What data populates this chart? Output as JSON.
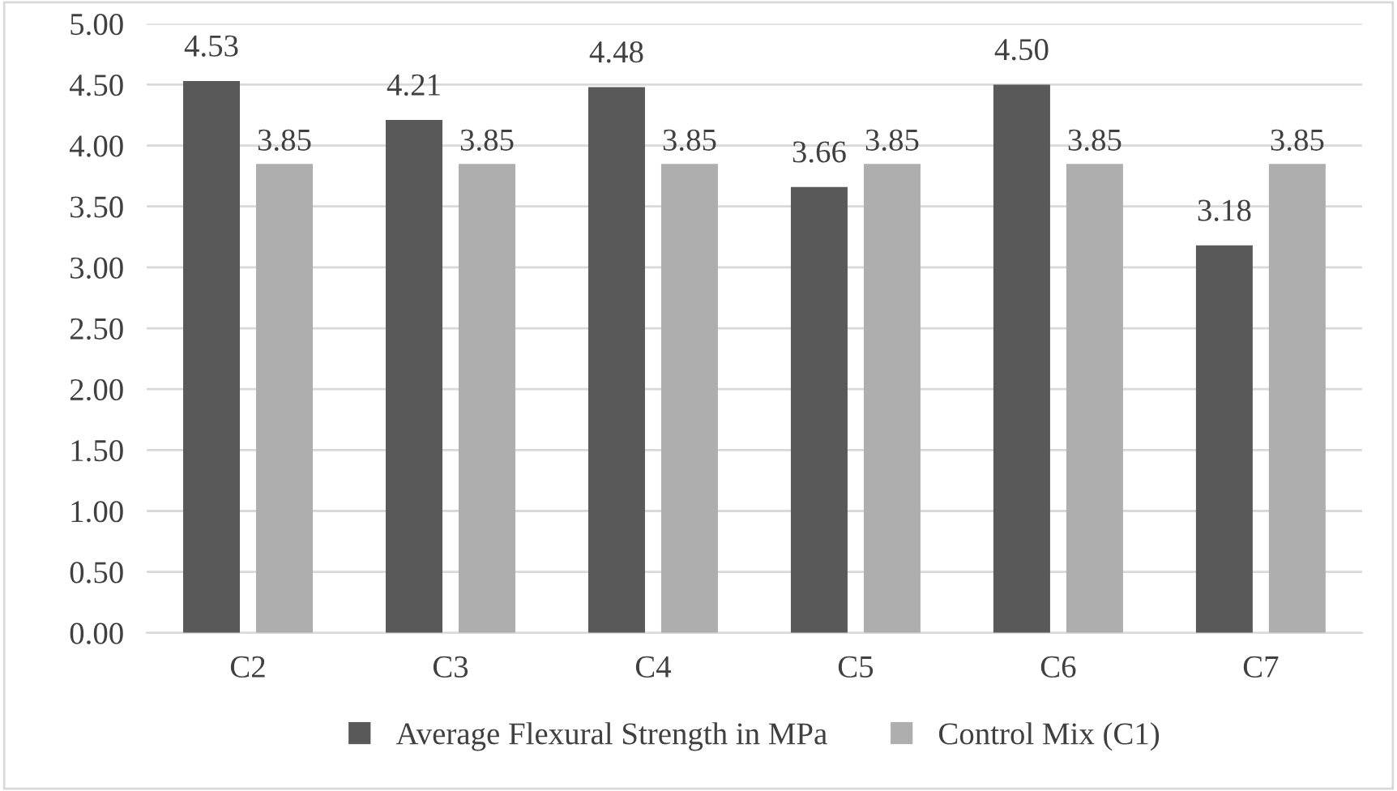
{
  "chart_data": {
    "type": "bar",
    "categories": [
      "C2",
      "C3",
      "C4",
      "C5",
      "C6",
      "C7"
    ],
    "series": [
      {
        "name": "Average Flexural Strength in MPa",
        "color": "#595959",
        "values": [
          4.53,
          4.21,
          4.48,
          3.66,
          4.5,
          3.18
        ],
        "value_labels": [
          "4.53",
          "4.21",
          "4.48",
          "3.66",
          "4.50",
          "3.18"
        ]
      },
      {
        "name": "Control Mix (C1)",
        "color": "#aeaeae",
        "values": [
          3.85,
          3.85,
          3.85,
          3.85,
          3.85,
          3.85
        ],
        "value_labels": [
          "3.85",
          "3.85",
          "3.85",
          "3.85",
          "3.85",
          "3.85"
        ]
      }
    ],
    "ylim": [
      0,
      5
    ],
    "yticks": [
      {
        "value": 0,
        "label": "0.00"
      },
      {
        "value": 0.5,
        "label": "0.50"
      },
      {
        "value": 1,
        "label": "1.00"
      },
      {
        "value": 1.5,
        "label": "1.50"
      },
      {
        "value": 2,
        "label": "2.00"
      },
      {
        "value": 2.5,
        "label": "2.50"
      },
      {
        "value": 3,
        "label": "3.00"
      },
      {
        "value": 3.5,
        "label": "3.50"
      },
      {
        "value": 4,
        "label": "4.00"
      },
      {
        "value": 4.5,
        "label": "4.50"
      },
      {
        "value": 5,
        "label": "5.00"
      }
    ],
    "grid": "y",
    "legend": "bottom"
  }
}
